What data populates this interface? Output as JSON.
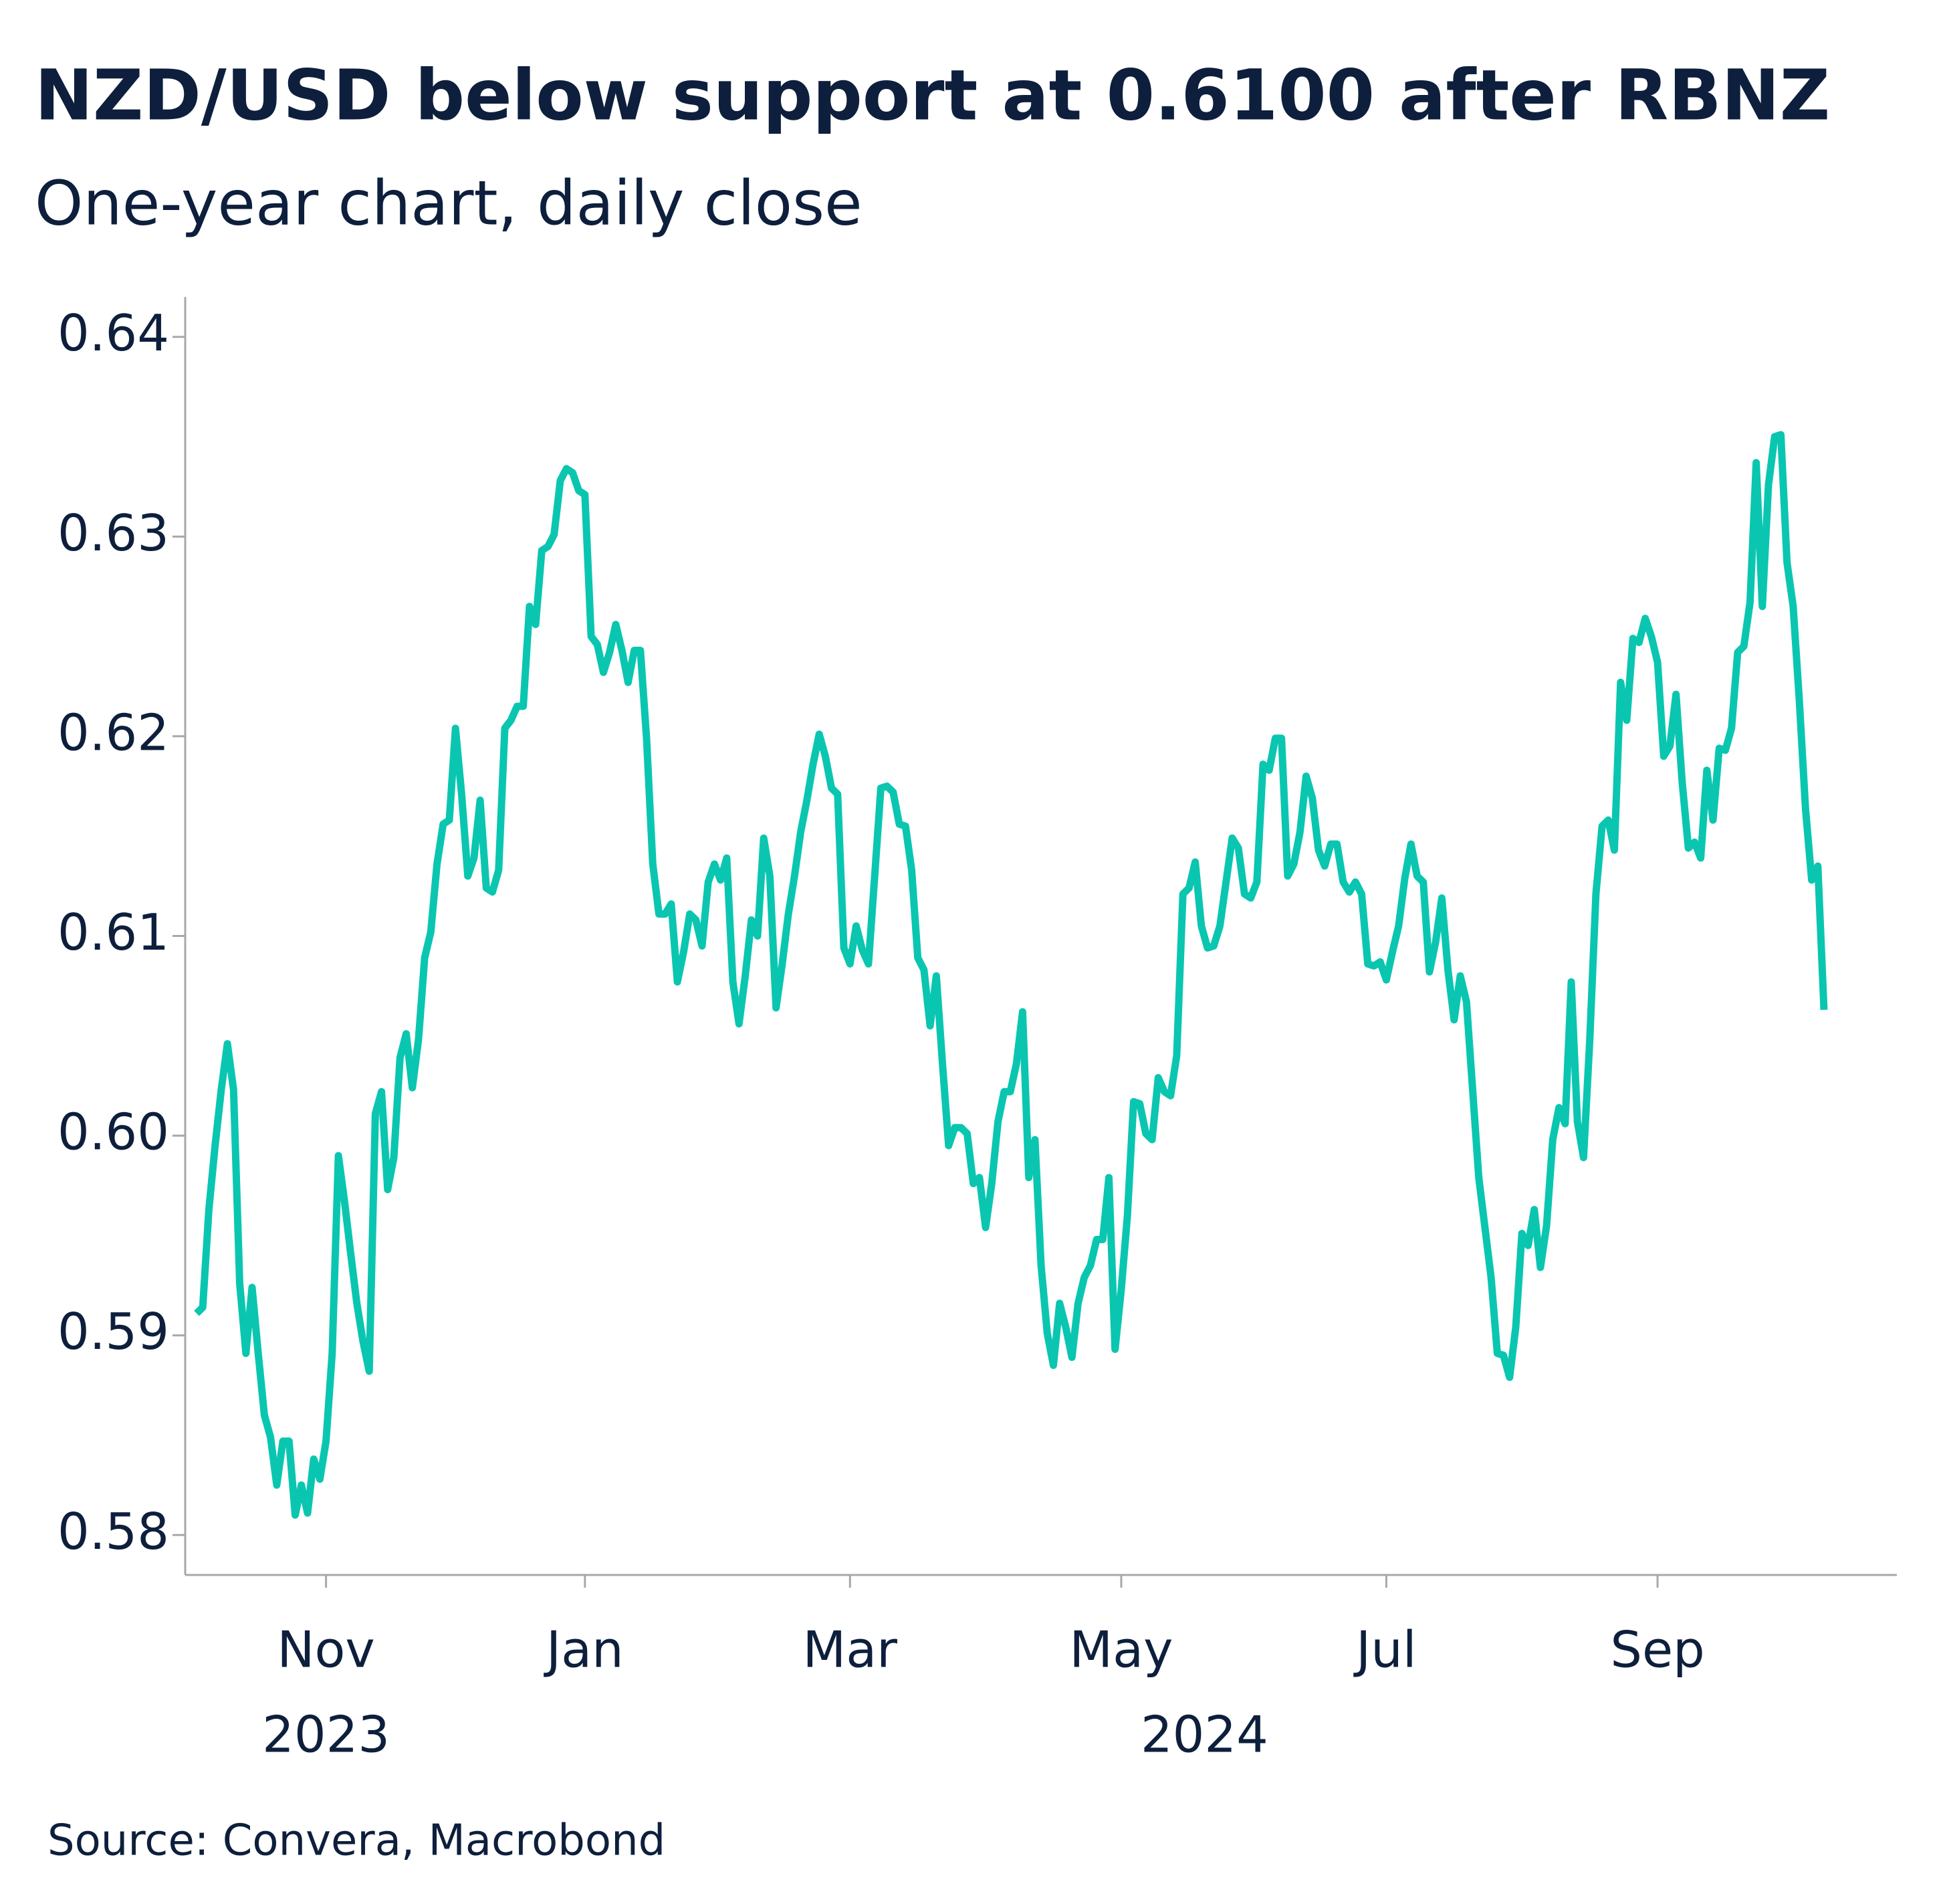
{
  "chart_data": {
    "type": "line",
    "title": "NZD/USD below support at 0.6100 after RBNZ",
    "subtitle": "One-year chart, daily close",
    "source": "Source: Convera, Macrobond",
    "color": "#0ac6b0",
    "ylim": [
      0.578,
      0.642
    ],
    "yticks": [
      0.58,
      0.59,
      {
        "value": 0.6,
        "label": "0.60"
      },
      0.61,
      0.62,
      0.63,
      0.64
    ],
    "x_groups": [
      {
        "label": "2023",
        "span": [
          21,
          21
        ]
      },
      {
        "label": "2024",
        "span": [
          63,
          264
        ]
      }
    ],
    "categories": [
      null,
      null,
      null,
      null,
      null,
      null,
      null,
      null,
      null,
      null,
      null,
      null,
      null,
      null,
      null,
      null,
      null,
      null,
      null,
      null,
      null,
      "Nov",
      null,
      null,
      null,
      null,
      null,
      null,
      null,
      null,
      null,
      null,
      null,
      null,
      null,
      null,
      null,
      null,
      null,
      null,
      null,
      null,
      null,
      null,
      null,
      null,
      null,
      null,
      null,
      null,
      null,
      null,
      null,
      null,
      null,
      null,
      null,
      null,
      null,
      null,
      null,
      null,
      null,
      "Jan",
      null,
      null,
      null,
      null,
      null,
      null,
      null,
      null,
      null,
      null,
      null,
      null,
      null,
      null,
      null,
      null,
      null,
      null,
      null,
      null,
      null,
      null,
      null,
      null,
      null,
      null,
      null,
      null,
      null,
      null,
      null,
      null,
      null,
      null,
      null,
      null,
      null,
      null,
      null,
      null,
      null,
      null,
      "Mar",
      null,
      null,
      null,
      null,
      null,
      null,
      null,
      null,
      null,
      null,
      null,
      null,
      null,
      null,
      null,
      null,
      null,
      null,
      null,
      null,
      null,
      null,
      null,
      null,
      null,
      null,
      null,
      null,
      null,
      null,
      null,
      null,
      null,
      null,
      null,
      null,
      null,
      null,
      null,
      null,
      null,
      null,
      null,
      "May",
      null,
      null,
      null,
      null,
      null,
      null,
      null,
      null,
      null,
      null,
      null,
      null,
      null,
      null,
      null,
      null,
      null,
      null,
      null,
      null,
      null,
      null,
      null,
      null,
      null,
      null,
      null,
      null,
      null,
      null,
      null,
      null,
      null,
      null,
      null,
      null,
      null,
      null,
      null,
      null,
      null,
      null,
      "Jul",
      null,
      null,
      null,
      null,
      null,
      null,
      null,
      null,
      null,
      null,
      null,
      null,
      null,
      null,
      null,
      null,
      null,
      null,
      null,
      null,
      null,
      null,
      null,
      null,
      null,
      null,
      null,
      null,
      null,
      null,
      null,
      null,
      null,
      null,
      null,
      null,
      null,
      null,
      null,
      null,
      null,
      null,
      null,
      "Sep",
      null,
      null,
      null,
      null,
      null,
      null,
      null,
      null,
      null,
      null,
      null,
      null,
      null,
      null,
      null,
      null,
      null,
      null,
      null,
      null,
      null,
      null,
      null,
      null,
      null,
      null,
      null
    ],
    "values": [
      0.5911,
      0.5914,
      0.5963,
      0.5995,
      0.6023,
      0.6046,
      0.6023,
      0.5926,
      0.5891,
      0.5924,
      0.5891,
      0.586,
      0.5849,
      0.5825,
      0.5847,
      0.5847,
      0.581,
      0.5825,
      0.5811,
      0.5838,
      0.5828,
      0.5847,
      0.5891,
      0.599,
      0.5967,
      0.5941,
      0.5916,
      0.5897,
      0.5882,
      0.6011,
      0.6022,
      0.5973,
      0.5989,
      0.6039,
      0.6051,
      0.6024,
      0.6048,
      0.6089,
      0.6102,
      0.6136,
      0.6156,
      0.6158,
      0.6204,
      0.6171,
      0.613,
      0.6139,
      0.6168,
      0.6124,
      0.6122,
      0.6133,
      0.6204,
      0.6208,
      0.6215,
      0.6215,
      0.6265,
      0.6256,
      0.6293,
      0.6295,
      0.6301,
      0.6328,
      0.6334,
      0.6332,
      0.6323,
      0.6321,
      0.625,
      0.6246,
      0.6232,
      0.6242,
      0.6256,
      0.6243,
      0.6227,
      0.6243,
      0.6243,
      0.6199,
      0.6136,
      0.6111,
      0.6111,
      0.6116,
      0.6077,
      0.6092,
      0.6111,
      0.6108,
      0.6095,
      0.6127,
      0.6136,
      0.6128,
      0.6139,
      0.6077,
      0.6056,
      0.608,
      0.6108,
      0.61,
      0.6149,
      0.613,
      0.6064,
      0.6086,
      0.6111,
      0.613,
      0.6152,
      0.6168,
      0.6186,
      0.6201,
      0.619,
      0.6174,
      0.6171,
      0.6094,
      0.6086,
      0.6105,
      0.6093,
      0.6086,
      0.613,
      0.6174,
      0.6175,
      0.6172,
      0.6156,
      0.6155,
      0.6133,
      0.6089,
      0.6083,
      0.6055,
      0.608,
      0.6036,
      0.5995,
      0.6004,
      0.6004,
      0.6001,
      0.5976,
      0.5979,
      0.5954,
      0.5976,
      0.6007,
      0.6022,
      0.6022,
      0.6036,
      0.6062,
      0.5979,
      0.5998,
      0.5935,
      0.5901,
      0.5885,
      0.5916,
      0.5904,
      0.5889,
      0.5916,
      0.5929,
      0.5935,
      0.5948,
      0.5948,
      0.5979,
      0.5893,
      0.5923,
      0.596,
      0.6017,
      0.6016,
      0.6001,
      0.5998,
      0.6029,
      0.6022,
      0.602,
      0.604,
      0.6121,
      0.6124,
      0.6137,
      0.6105,
      0.6094,
      0.6095,
      0.6105,
      0.6127,
      0.6149,
      0.6144,
      0.6121,
      0.6119,
      0.6127,
      0.6186,
      0.6183,
      0.6199,
      0.6199,
      0.613,
      0.6136,
      0.6152,
      0.618,
      0.6169,
      0.6143,
      0.6135,
      0.6146,
      0.6146,
      0.6127,
      0.6122,
      0.6127,
      0.6121,
      0.6086,
      0.6085,
      0.6087,
      0.6078,
      0.6092,
      0.6105,
      0.6129,
      0.6146,
      0.613,
      0.6127,
      0.6082,
      0.6097,
      0.6119,
      0.6083,
      0.6058,
      0.608,
      0.6067,
      0.6023,
      0.5979,
      0.5954,
      0.5929,
      0.5891,
      0.589,
      0.5879,
      0.5904,
      0.5951,
      0.5945,
      0.5963,
      0.5934,
      0.5955,
      0.5998,
      0.6014,
      0.6006,
      0.6077,
      0.6007,
      0.5989,
      0.6048,
      0.6121,
      0.6155,
      0.6158,
      0.6143,
      0.6227,
      0.6208,
      0.6249,
      0.6247,
      0.6259,
      0.625,
      0.6237,
      0.619,
      0.6195,
      0.6221,
      0.6177,
      0.6144,
      0.6147,
      0.6139,
      0.6183,
      0.6158,
      0.6194,
      0.6193,
      0.6204,
      0.6242,
      0.6245,
      0.6267,
      0.6337,
      0.6265,
      0.6326,
      0.635,
      0.6351,
      0.6287,
      0.6265,
      0.6218,
      0.6164,
      0.6128,
      0.6135,
      0.6063
    ]
  }
}
